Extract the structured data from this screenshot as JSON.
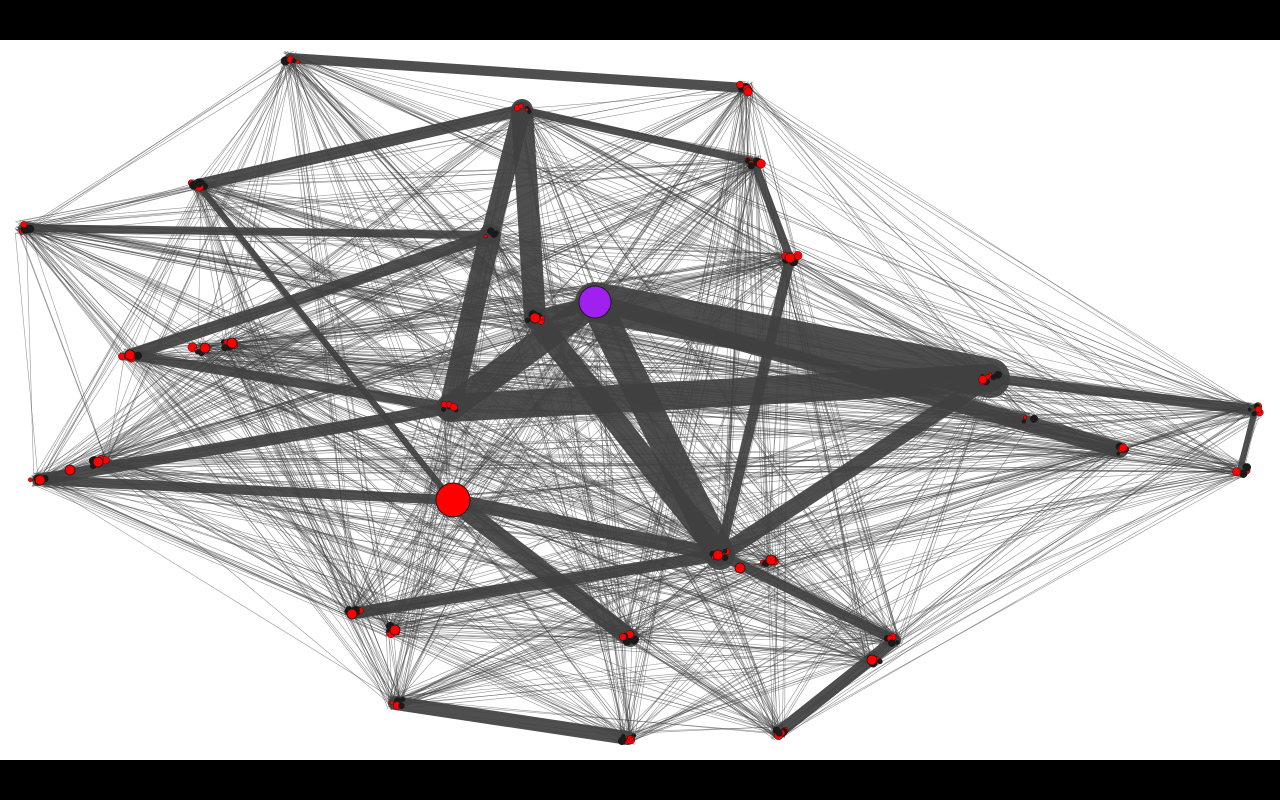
{
  "colors": {
    "background": "#ffffff",
    "letterbox": "#000000",
    "edge": "#404040",
    "node": "#ff0000",
    "node_outline": "#1a1a1a",
    "highlight_node": "#a020f0"
  },
  "graph": {
    "highlighted_node": "purple-hub"
  }
}
